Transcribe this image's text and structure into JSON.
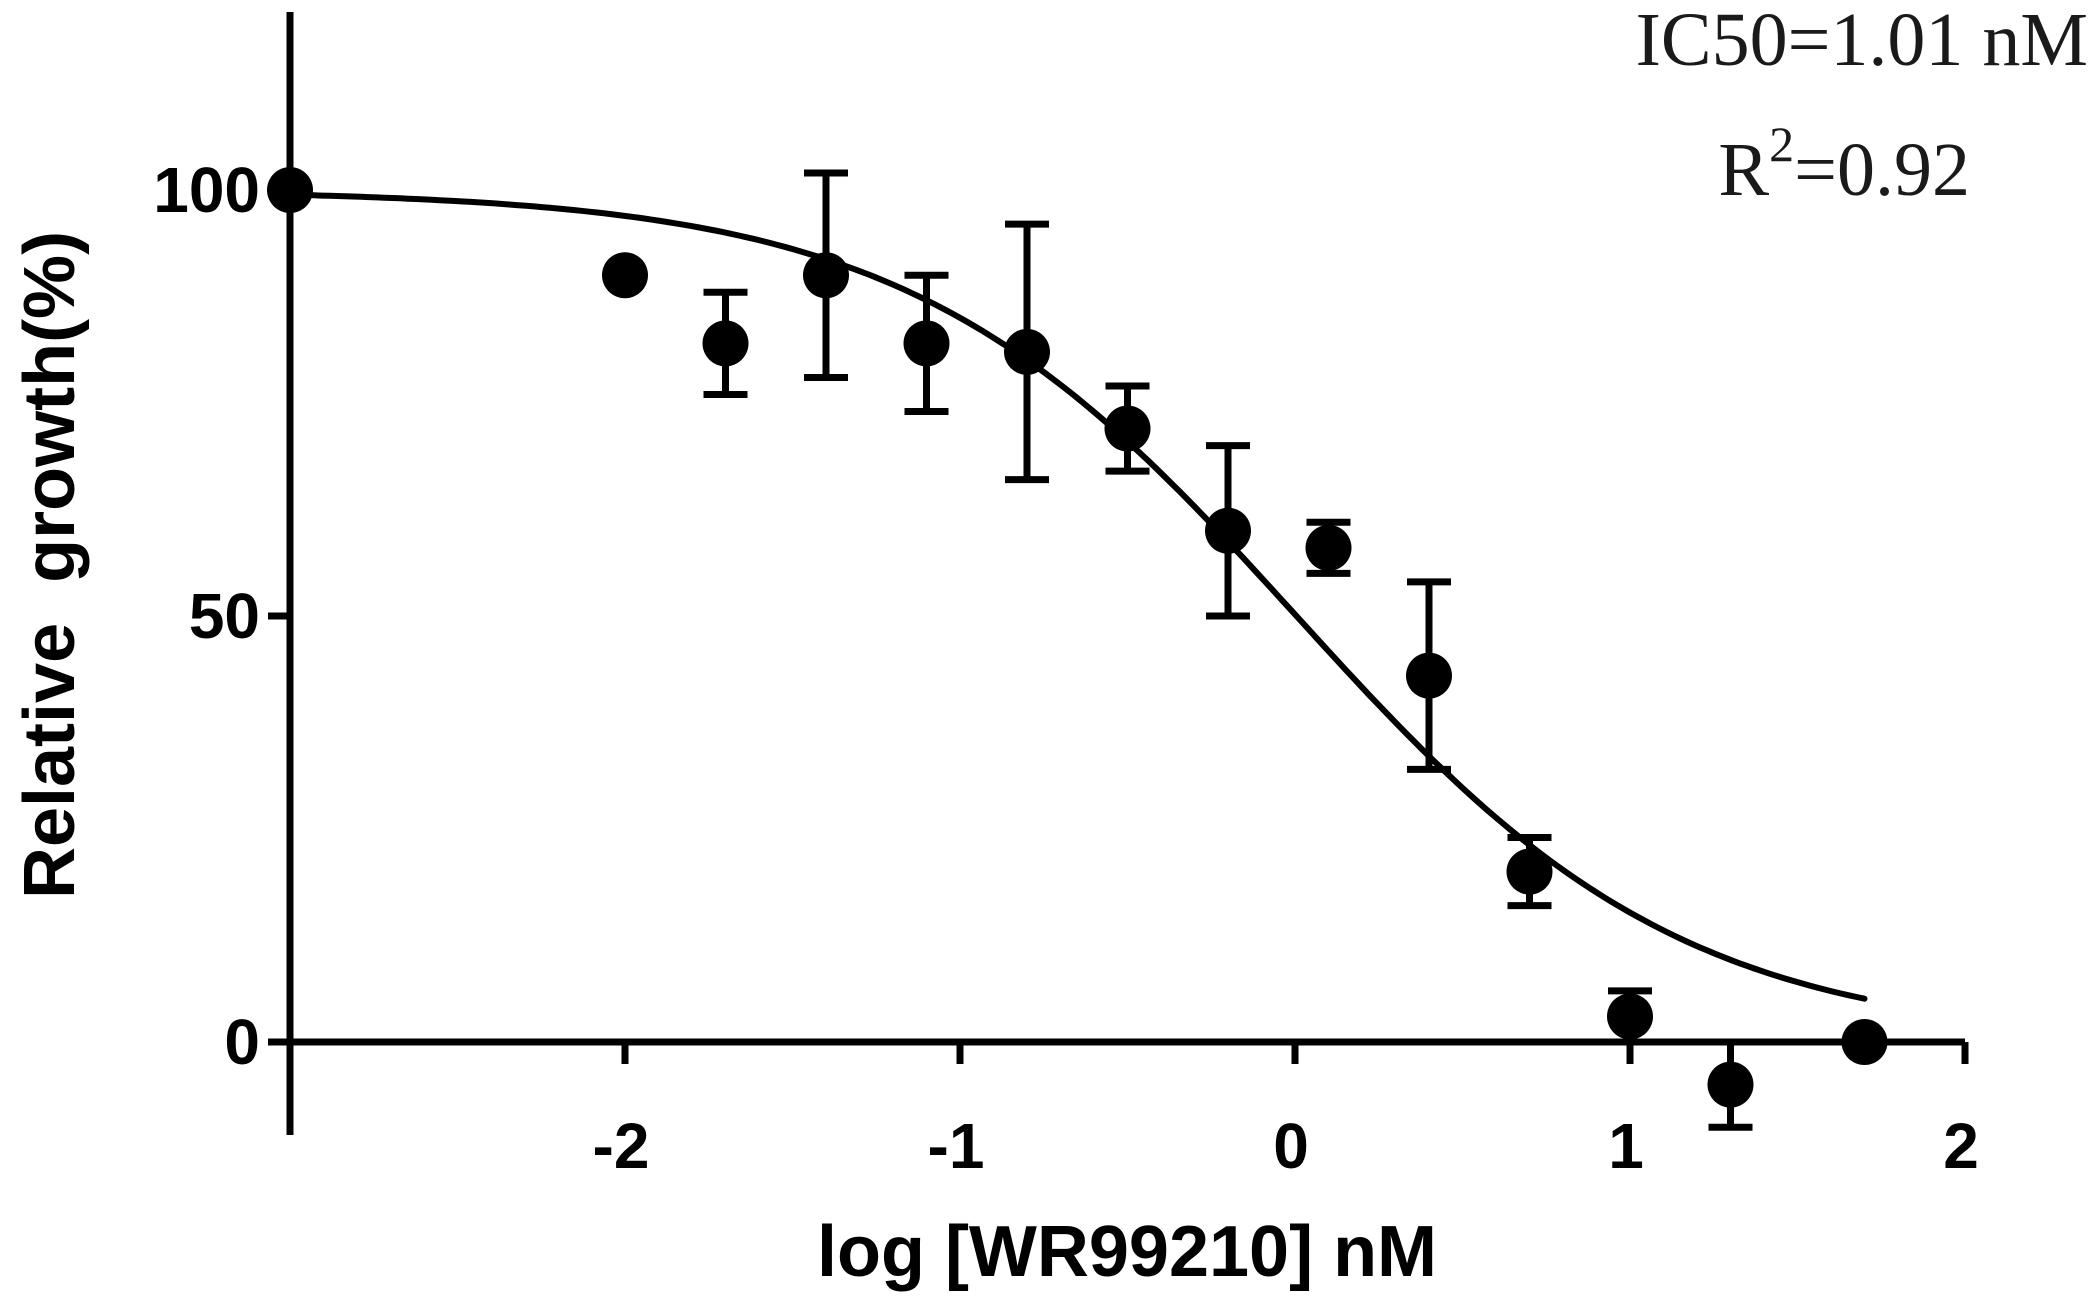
{
  "chart_data": {
    "type": "scatter",
    "title": "",
    "xlabel": "log [WR99210] nM",
    "ylabel": "Relative  growth(%)",
    "xlim": [
      -3,
      2
    ],
    "ylim": [
      -10,
      120
    ],
    "x_ticks": [
      -2,
      -1,
      0,
      1,
      2
    ],
    "x_tick_labels": [
      "-2",
      "-1",
      "0",
      "1",
      "2"
    ],
    "y_ticks": [
      0,
      50,
      100
    ],
    "y_tick_labels": [
      "0",
      "50",
      "100"
    ],
    "grid": false,
    "annotations": {
      "ic50": "IC50=1.01 nM",
      "r2_prefix": "R",
      "r2_sup": "2",
      "r2_suffix": "=0.92"
    },
    "series": [
      {
        "marker": "filled-circle",
        "color": "#000000",
        "points": [
          {
            "x": -3.0,
            "y": 100,
            "err": 0
          },
          {
            "x": -2.0,
            "y": 90,
            "err": 0
          },
          {
            "x": -1.7,
            "y": 82,
            "err": 6
          },
          {
            "x": -1.4,
            "y": 90,
            "err": 12
          },
          {
            "x": -1.1,
            "y": 82,
            "err": 8
          },
          {
            "x": -0.8,
            "y": 81,
            "err": 15
          },
          {
            "x": -0.5,
            "y": 72,
            "err": 5
          },
          {
            "x": -0.2,
            "y": 60,
            "err": 10
          },
          {
            "x": 0.1,
            "y": 58,
            "err": 3
          },
          {
            "x": 0.4,
            "y": 43,
            "err": 11
          },
          {
            "x": 0.7,
            "y": 20,
            "err": 4
          },
          {
            "x": 1.0,
            "y": 3,
            "err": 3
          },
          {
            "x": 1.3,
            "y": -5,
            "err": 5
          },
          {
            "x": 1.7,
            "y": 0,
            "err": 0
          }
        ]
      }
    ],
    "fit_curve": {
      "model": "dose-response",
      "top": 100,
      "bottom": 0,
      "logIC50": 0.0043,
      "hill_slope": -0.75,
      "x_range": [
        -3.0,
        1.7
      ]
    }
  }
}
